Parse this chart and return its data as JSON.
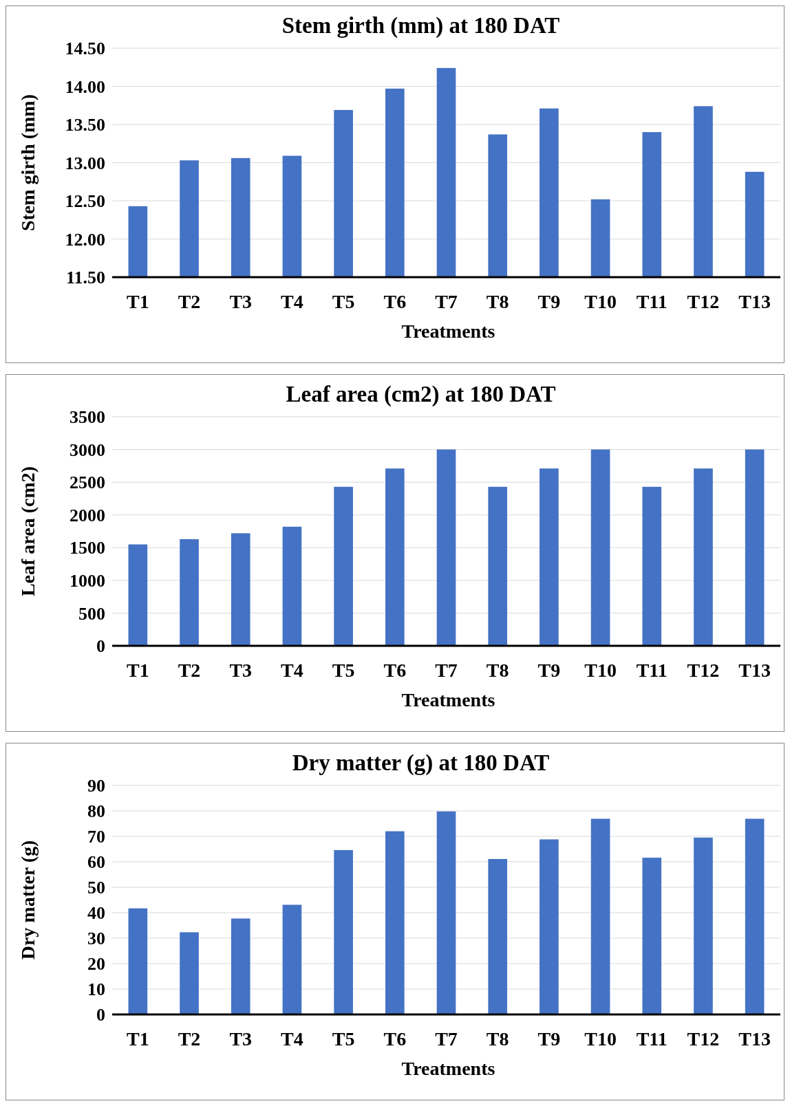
{
  "chart_data": [
    {
      "type": "bar",
      "title": "Stem girth (mm) at 180 DAT",
      "xlabel": "Treatments",
      "ylabel": "Stem girth (mm)",
      "categories": [
        "T1",
        "T2",
        "T3",
        "T4",
        "T5",
        "T6",
        "T7",
        "T8",
        "T9",
        "T10",
        "T11",
        "T12",
        "T13"
      ],
      "values": [
        12.43,
        13.03,
        13.06,
        13.09,
        13.69,
        13.97,
        14.24,
        13.37,
        13.71,
        12.52,
        13.4,
        13.74,
        12.88
      ],
      "color": "#4472c4",
      "ylim": [
        11.5,
        14.5
      ],
      "yticks": [
        {
          "value": 11.5,
          "label": "11.50"
        },
        {
          "value": 12,
          "label": "12.00"
        },
        {
          "value": 12.5,
          "label": "12.50"
        },
        {
          "value": 13,
          "label": "13.00"
        },
        {
          "value": 13.5,
          "label": "13.50"
        },
        {
          "value": 14,
          "label": "14.00"
        },
        {
          "value": 14.5,
          "label": "14.50"
        }
      ],
      "grid": "y"
    },
    {
      "type": "bar",
      "title": "Leaf area (cm2) at 180 DAT",
      "xlabel": "Treatments",
      "ylabel": "Leaf area (cm2)",
      "categories": [
        "T1",
        "T2",
        "T3",
        "T4",
        "T5",
        "T6",
        "T7",
        "T8",
        "T9",
        "T10",
        "T11",
        "T12",
        "T13"
      ],
      "values": [
        1550,
        1630,
        1720,
        1820,
        2430,
        2710,
        3000,
        2430,
        2710,
        3000,
        2430,
        2710,
        3000
      ],
      "color": "#4472c4",
      "ylim": [
        0,
        3500
      ],
      "yticks": [
        0,
        500,
        1000,
        1500,
        2000,
        2500,
        3000,
        3500
      ],
      "grid": "y"
    },
    {
      "type": "bar",
      "title": "Dry matter (g) at 180 DAT",
      "xlabel": "Treatments",
      "ylabel": "Dry matter (g)",
      "categories": [
        "T1",
        "T2",
        "T3",
        "T4",
        "T5",
        "T6",
        "T7",
        "T8",
        "T9",
        "T10",
        "T11",
        "T12",
        "T13"
      ],
      "values": [
        41.7,
        32.3,
        37.7,
        43.1,
        64.6,
        72.0,
        79.8,
        61.1,
        68.8,
        76.9,
        61.6,
        69.5,
        76.9
      ],
      "color": "#4472c4",
      "ylim": [
        0,
        90
      ],
      "yticks": [
        0,
        10,
        20,
        30,
        40,
        50,
        60,
        70,
        80,
        90
      ],
      "grid": "y"
    }
  ]
}
